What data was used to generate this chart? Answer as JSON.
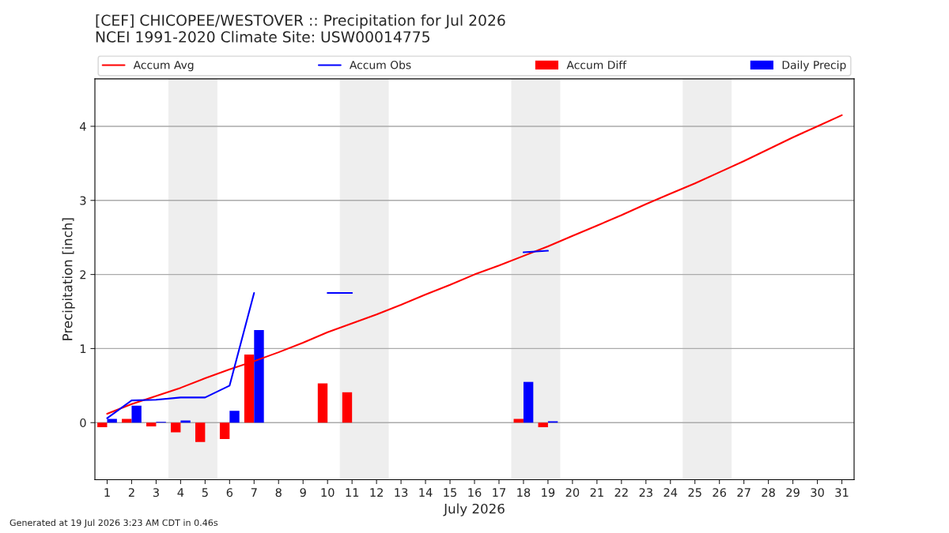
{
  "chart_data": {
    "type": "bar",
    "title": "[CEF] CHICOPEE/WESTOVER :: Precipitation for Jul 2026\nNCEI 1991-2020 Climate Site: USW00014775",
    "xlabel": "July 2026",
    "ylabel": "Precipitation [inch]",
    "x": [
      1,
      2,
      3,
      4,
      5,
      6,
      7,
      8,
      9,
      10,
      11,
      12,
      13,
      14,
      15,
      16,
      17,
      18,
      19,
      20,
      21,
      22,
      23,
      24,
      25,
      26,
      27,
      28,
      29,
      30,
      31
    ],
    "series": [
      {
        "name": "Accum Avg",
        "type": "line",
        "color": "#ff0000",
        "values": [
          0.12,
          0.25,
          0.36,
          0.47,
          0.6,
          0.72,
          0.83,
          0.95,
          1.08,
          1.22,
          1.34,
          1.46,
          1.59,
          1.73,
          1.86,
          2.0,
          2.12,
          2.25,
          2.38,
          2.52,
          2.66,
          2.8,
          2.95,
          3.09,
          3.23,
          3.38,
          3.53,
          3.69,
          3.85,
          4.0,
          4.15
        ]
      },
      {
        "name": "Accum Obs",
        "type": "line",
        "color": "#0000ff",
        "values": [
          0.06,
          0.3,
          0.31,
          0.34,
          0.34,
          0.5,
          1.75,
          null,
          null,
          1.75,
          1.75,
          null,
          null,
          null,
          null,
          null,
          null,
          2.3,
          2.32,
          null,
          null,
          null,
          null,
          null,
          null,
          null,
          null,
          null,
          null,
          null,
          null
        ]
      },
      {
        "name": "Accum Diff",
        "color": "#ff0000",
        "values": [
          -0.06,
          0.05,
          -0.05,
          -0.13,
          -0.26,
          -0.22,
          0.92,
          null,
          null,
          0.53,
          0.41,
          null,
          null,
          null,
          null,
          null,
          null,
          0.05,
          -0.06,
          null,
          null,
          null,
          null,
          null,
          null,
          null,
          null,
          null,
          null,
          null,
          null
        ]
      },
      {
        "name": "Daily Precip",
        "color": "#0000ff",
        "values": [
          0.05,
          0.23,
          0.01,
          0.03,
          0.0,
          0.16,
          1.25,
          null,
          null,
          0.0,
          0.0,
          null,
          null,
          null,
          null,
          null,
          null,
          0.55,
          0.02,
          null,
          null,
          null,
          null,
          null,
          null,
          null,
          null,
          null,
          null,
          null,
          null
        ]
      }
    ],
    "xlim": [
      0.5,
      31.5
    ],
    "xticks": [
      1,
      2,
      3,
      4,
      5,
      6,
      7,
      8,
      9,
      10,
      11,
      12,
      13,
      14,
      15,
      16,
      17,
      18,
      19,
      20,
      21,
      22,
      23,
      24,
      25,
      26,
      27,
      28,
      29,
      30,
      31
    ],
    "ylim": [
      -0.77,
      4.64
    ],
    "yticks": [
      0,
      1,
      2,
      3,
      4
    ],
    "bands": [
      {
        "axis": "x",
        "from": 3.5,
        "to": 5.5,
        "color": "#eeeeee"
      },
      {
        "axis": "x",
        "from": 10.5,
        "to": 12.5,
        "color": "#eeeeee"
      },
      {
        "axis": "x",
        "from": 17.5,
        "to": 19.5,
        "color": "#eeeeee"
      },
      {
        "axis": "x",
        "from": 24.5,
        "to": 26.5,
        "color": "#eeeeee"
      }
    ],
    "grid": "y",
    "legend": "top",
    "annotations": [
      "Generated at 19 Jul 2026 3:23 AM CDT in 0.46s"
    ]
  }
}
